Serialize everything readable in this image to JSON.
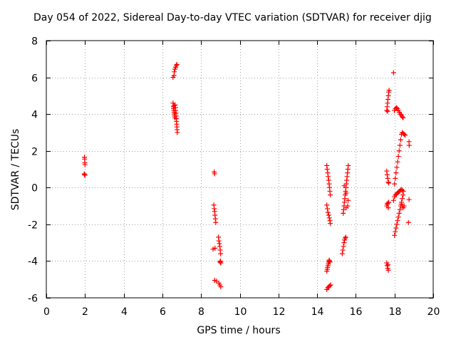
{
  "chart_data": {
    "type": "scatter",
    "title": "Day 054 of 2022, Sidereal Day-to-day VTEC variation (SDTVAR) for receiver djig",
    "xlabel": "GPS time / hours",
    "ylabel": "SDTVAR / TECUs",
    "xlim": [
      0,
      20
    ],
    "ylim": [
      -6,
      8
    ],
    "xticks": [
      0,
      2,
      4,
      6,
      8,
      10,
      12,
      14,
      16,
      18,
      20
    ],
    "yticks": [
      -6,
      -4,
      -2,
      0,
      2,
      4,
      6,
      8
    ],
    "grid": true,
    "marker": "plus",
    "color": "#ff0000",
    "series": [
      {
        "name": "SDTVAR",
        "points": [
          [
            1.97,
            1.65
          ],
          [
            1.98,
            1.55
          ],
          [
            1.99,
            1.35
          ],
          [
            2.0,
            1.25
          ],
          [
            1.96,
            0.75
          ],
          [
            1.98,
            0.7
          ],
          [
            2.0,
            0.68
          ],
          [
            6.55,
            6.0
          ],
          [
            6.6,
            6.1
          ],
          [
            6.62,
            6.3
          ],
          [
            6.65,
            6.45
          ],
          [
            6.68,
            6.55
          ],
          [
            6.72,
            6.65
          ],
          [
            6.75,
            6.7
          ],
          [
            6.55,
            4.6
          ],
          [
            6.57,
            4.4
          ],
          [
            6.58,
            4.3
          ],
          [
            6.6,
            4.2
          ],
          [
            6.61,
            4.1
          ],
          [
            6.62,
            4.0
          ],
          [
            6.63,
            3.9
          ],
          [
            6.65,
            3.8
          ],
          [
            6.66,
            4.5
          ],
          [
            6.68,
            4.2
          ],
          [
            6.7,
            4.05
          ],
          [
            6.71,
            3.9
          ],
          [
            6.72,
            3.75
          ],
          [
            6.73,
            3.6
          ],
          [
            6.74,
            3.45
          ],
          [
            6.75,
            3.3
          ],
          [
            6.76,
            3.15
          ],
          [
            6.77,
            3.0
          ],
          [
            6.6,
            4.45
          ],
          [
            6.68,
            4.35
          ],
          [
            8.68,
            0.85
          ],
          [
            8.7,
            0.75
          ],
          [
            8.66,
            -0.95
          ],
          [
            8.68,
            -1.15
          ],
          [
            8.7,
            -1.3
          ],
          [
            8.72,
            -1.5
          ],
          [
            8.74,
            -1.7
          ],
          [
            8.76,
            -1.9
          ],
          [
            8.62,
            -3.35
          ],
          [
            8.72,
            -3.3
          ],
          [
            8.7,
            -5.05
          ],
          [
            8.8,
            -5.1
          ],
          [
            8.9,
            -2.7
          ],
          [
            8.92,
            -2.9
          ],
          [
            8.95,
            -3.05
          ],
          [
            8.97,
            -3.2
          ],
          [
            8.99,
            -3.4
          ],
          [
            9.01,
            -3.6
          ],
          [
            9.0,
            -4.0
          ],
          [
            8.98,
            -4.05
          ],
          [
            9.02,
            -4.1
          ],
          [
            8.92,
            -5.2
          ],
          [
            8.97,
            -5.3
          ],
          [
            9.02,
            -5.4
          ],
          [
            14.5,
            1.2
          ],
          [
            14.52,
            1.0
          ],
          [
            14.55,
            0.8
          ],
          [
            14.57,
            0.6
          ],
          [
            14.6,
            0.4
          ],
          [
            14.62,
            0.2
          ],
          [
            14.64,
            0.0
          ],
          [
            14.66,
            -0.2
          ],
          [
            14.68,
            -0.4
          ],
          [
            14.5,
            -0.95
          ],
          [
            14.53,
            -1.15
          ],
          [
            14.56,
            -1.35
          ],
          [
            14.6,
            -1.5
          ],
          [
            14.63,
            -1.65
          ],
          [
            14.66,
            -1.8
          ],
          [
            14.68,
            -1.95
          ],
          [
            14.5,
            -4.55
          ],
          [
            14.52,
            -4.45
          ],
          [
            14.54,
            -4.35
          ],
          [
            14.56,
            -4.25
          ],
          [
            14.58,
            -4.15
          ],
          [
            14.6,
            -4.05
          ],
          [
            14.62,
            -3.95
          ],
          [
            14.64,
            -4.0
          ],
          [
            14.66,
            -4.05
          ],
          [
            14.5,
            -5.55
          ],
          [
            14.55,
            -5.45
          ],
          [
            14.6,
            -5.4
          ],
          [
            14.65,
            -5.35
          ],
          [
            14.7,
            -5.3
          ],
          [
            15.35,
            -1.4
          ],
          [
            15.37,
            -1.2
          ],
          [
            15.39,
            -1.0
          ],
          [
            15.41,
            -0.8
          ],
          [
            15.43,
            -0.6
          ],
          [
            15.45,
            -0.4
          ],
          [
            15.47,
            -0.2
          ],
          [
            15.49,
            0.0
          ],
          [
            15.51,
            0.2
          ],
          [
            15.53,
            0.4
          ],
          [
            15.55,
            0.6
          ],
          [
            15.57,
            0.8
          ],
          [
            15.59,
            1.0
          ],
          [
            15.61,
            1.2
          ],
          [
            15.4,
            0.1
          ],
          [
            15.5,
            -0.3
          ],
          [
            15.6,
            -0.7
          ],
          [
            15.58,
            -1.0
          ],
          [
            15.5,
            -1.1
          ],
          [
            15.3,
            -3.6
          ],
          [
            15.33,
            -3.4
          ],
          [
            15.36,
            -3.2
          ],
          [
            15.39,
            -3.0
          ],
          [
            15.42,
            -2.85
          ],
          [
            15.45,
            -2.75
          ],
          [
            15.48,
            -2.7
          ],
          [
            17.6,
            0.9
          ],
          [
            17.62,
            0.7
          ],
          [
            17.65,
            0.5
          ],
          [
            17.68,
            0.3
          ],
          [
            17.7,
            0.25
          ],
          [
            17.6,
            -1.0
          ],
          [
            17.62,
            -0.9
          ],
          [
            17.65,
            -0.85
          ],
          [
            17.7,
            -0.8
          ],
          [
            17.68,
            -1.1
          ],
          [
            17.6,
            -4.1
          ],
          [
            17.62,
            -4.25
          ],
          [
            17.65,
            -4.4
          ],
          [
            17.68,
            -4.5
          ],
          [
            17.66,
            -4.2
          ],
          [
            17.6,
            4.2
          ],
          [
            17.62,
            4.4
          ],
          [
            17.64,
            4.6
          ],
          [
            17.66,
            4.8
          ],
          [
            17.68,
            5.0
          ],
          [
            17.7,
            5.2
          ],
          [
            17.72,
            5.3
          ],
          [
            17.65,
            4.15
          ],
          [
            17.95,
            6.25
          ],
          [
            18.0,
            4.2
          ],
          [
            18.05,
            4.3
          ],
          [
            18.1,
            4.35
          ],
          [
            18.15,
            4.3
          ],
          [
            18.2,
            4.2
          ],
          [
            18.25,
            4.1
          ],
          [
            18.3,
            4.0
          ],
          [
            18.35,
            3.95
          ],
          [
            18.4,
            3.85
          ],
          [
            18.45,
            3.8
          ],
          [
            18.0,
            -2.6
          ],
          [
            18.04,
            -2.4
          ],
          [
            18.08,
            -2.2
          ],
          [
            18.12,
            -2.0
          ],
          [
            18.16,
            -1.8
          ],
          [
            18.2,
            -1.6
          ],
          [
            18.24,
            -1.4
          ],
          [
            18.28,
            -1.2
          ],
          [
            18.32,
            -1.0
          ],
          [
            18.36,
            -0.8
          ],
          [
            18.4,
            -0.6
          ],
          [
            18.44,
            -0.4
          ],
          [
            18.46,
            -0.2
          ],
          [
            17.95,
            -0.7
          ],
          [
            18.0,
            -0.5
          ],
          [
            18.05,
            -0.4
          ],
          [
            18.1,
            -0.35
          ],
          [
            18.15,
            -0.3
          ],
          [
            18.2,
            -0.25
          ],
          [
            18.25,
            -0.2
          ],
          [
            18.3,
            -0.15
          ],
          [
            18.35,
            -0.1
          ],
          [
            18.4,
            -0.15
          ],
          [
            18.0,
            0.2
          ],
          [
            18.04,
            0.5
          ],
          [
            18.08,
            0.8
          ],
          [
            18.12,
            1.1
          ],
          [
            18.16,
            1.4
          ],
          [
            18.2,
            1.7
          ],
          [
            18.24,
            2.0
          ],
          [
            18.28,
            2.3
          ],
          [
            18.32,
            2.6
          ],
          [
            18.36,
            2.9
          ],
          [
            18.4,
            3.0
          ],
          [
            18.45,
            2.95
          ],
          [
            18.5,
            2.9
          ],
          [
            18.55,
            2.85
          ],
          [
            18.35,
            -0.9
          ],
          [
            18.4,
            -1.0
          ],
          [
            18.45,
            -1.1
          ],
          [
            18.5,
            -1.0
          ],
          [
            18.75,
            2.5
          ],
          [
            18.76,
            2.3
          ],
          [
            18.75,
            -0.65
          ],
          [
            18.72,
            -1.9
          ]
        ]
      }
    ]
  }
}
